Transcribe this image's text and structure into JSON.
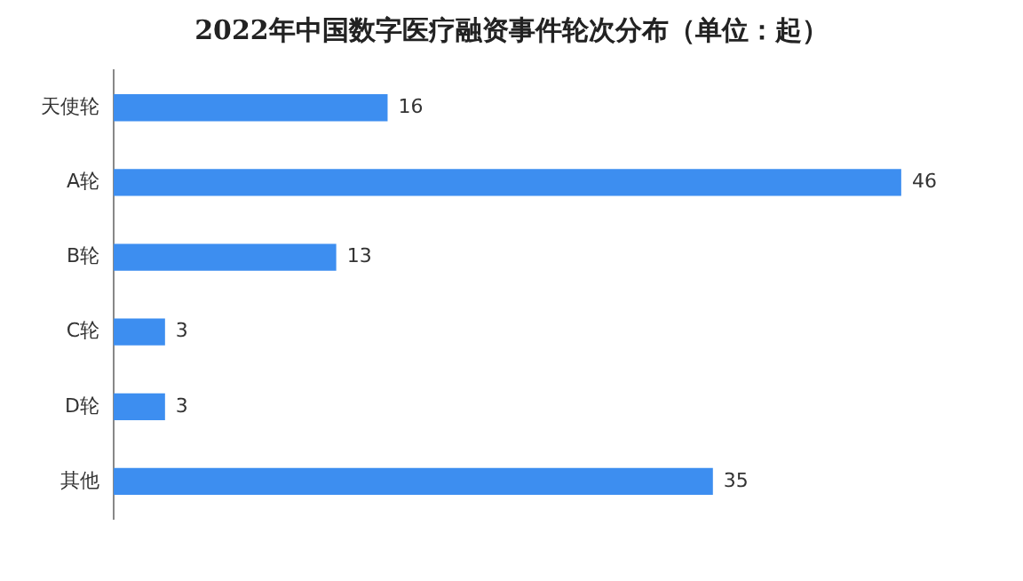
{
  "chart_data": {
    "type": "bar",
    "orientation": "horizontal",
    "title": "2022年中国数字医疗融资事件轮次分布（单位：起）",
    "categories": [
      "天使轮",
      "A轮",
      "B轮",
      "C轮",
      "D轮",
      "其他"
    ],
    "values": [
      16,
      46,
      13,
      3,
      3,
      35
    ],
    "color": "#3d8ef0",
    "data_labels": true,
    "grid": false,
    "legend": false
  }
}
